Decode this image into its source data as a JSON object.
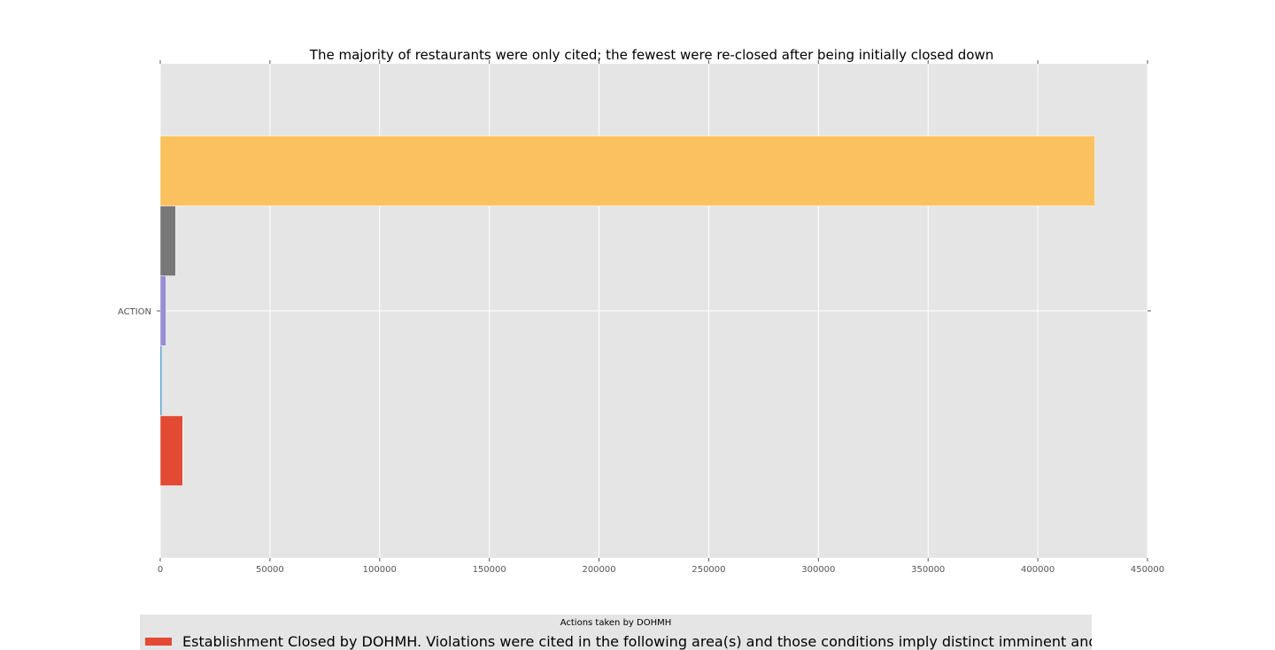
{
  "chart_data": {
    "type": "bar",
    "orientation": "horizontal",
    "title": "The majority of restaurants were only cited; the fewest were re-closed after being initially closed down",
    "categories": [
      "ACTION"
    ],
    "series": [
      {
        "name": "Establishment Closed by DOHMH.  Violations were cited in the following area(s) and those conditions imply distinct imminent and hazard",
        "value": 10200,
        "color": "#E24A33"
      },
      {
        "value": 700,
        "color": "#348ABD"
      },
      {
        "value": 2600,
        "color": "#988ED5"
      },
      {
        "value": 7000,
        "color": "#777777"
      },
      {
        "value": 426000,
        "color": "#FBC15E"
      }
    ],
    "xlim": [
      0,
      450000
    ],
    "xticks": [
      0,
      50000,
      100000,
      150000,
      200000,
      250000,
      300000,
      350000,
      400000,
      450000
    ],
    "grid": true,
    "legend_title": "Actions taken by DOHMH",
    "legend_placement": "bottom"
  }
}
